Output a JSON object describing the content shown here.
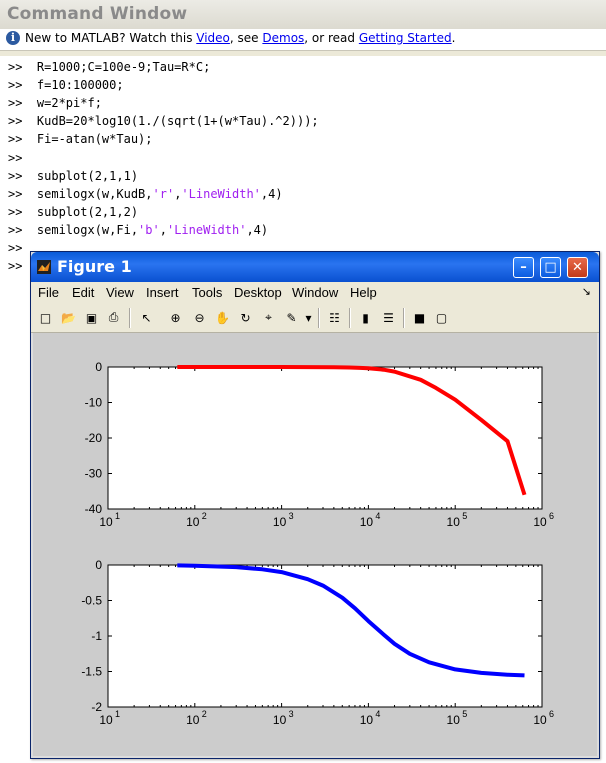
{
  "command_window": {
    "title": "Command Window",
    "info": {
      "pre": "New to MATLAB? Watch this ",
      "link_video": "Video",
      "mid1": ", see ",
      "link_demos": "Demos",
      "mid2": ", or read ",
      "link_getting_started": "Getting Started",
      "post": "."
    },
    "prompt": ">>",
    "lines": [
      [
        {
          "t": ">>  R=1000;C=100e-9;Tau=R*C;"
        }
      ],
      [
        {
          "t": ">>  f=10:100000;"
        }
      ],
      [
        {
          "t": ">>  w=2*pi*f;"
        }
      ],
      [
        {
          "t": ">>  KudB=20*log10(1./(sqrt(1+(w*Tau).^2)));"
        }
      ],
      [
        {
          "t": ">>  Fi=-atan(w*Tau);"
        }
      ],
      [
        {
          "t": ">>"
        }
      ],
      [
        {
          "t": ">>  subplot(2,1,1)"
        }
      ],
      [
        {
          "t": ">>  semilogx(w,KudB,"
        },
        {
          "t": "'r'",
          "s": true
        },
        {
          "t": ","
        },
        {
          "t": "'LineWidth'",
          "s": true
        },
        {
          "t": ",4)"
        }
      ],
      [
        {
          "t": ">>  subplot(2,1,2)"
        }
      ],
      [
        {
          "t": ">>  semilogx(w,Fi,"
        },
        {
          "t": "'b'",
          "s": true
        },
        {
          "t": ","
        },
        {
          "t": "'LineWidth'",
          "s": true
        },
        {
          "t": ",4)"
        }
      ],
      [
        {
          "t": ">>"
        }
      ],
      [
        {
          "t": ">>"
        }
      ]
    ]
  },
  "figure": {
    "title": "Figure 1",
    "menus": [
      "File",
      "Edit",
      "View",
      "Insert",
      "Tools",
      "Desktop",
      "Window",
      "Help"
    ],
    "toolbar_icons": [
      "new-figure-icon",
      "open-file-icon",
      "save-icon",
      "print-icon",
      "edit-plot-arrow-icon",
      "zoom-in-icon",
      "zoom-out-icon",
      "pan-hand-icon",
      "rotate-3d-icon",
      "data-cursor-icon",
      "brush-icon",
      "brush-dropdown-icon",
      "link-plot-icon",
      "colorbar-icon",
      "legend-icon",
      "hide-plot-tools-icon",
      "show-plot-tools-icon"
    ],
    "colors": {
      "title_bar": "#0a5bd8",
      "canvas": "#cccccc"
    }
  },
  "chart_data": [
    {
      "type": "line",
      "xscale": "log",
      "xlim": [
        10,
        1000000
      ],
      "ylim": [
        -40,
        0
      ],
      "x_ticks": [
        "10",
        "10",
        "10",
        "10",
        "10",
        "10"
      ],
      "x_tick_exponents": [
        "1",
        "2",
        "3",
        "4",
        "5",
        "6"
      ],
      "y_ticks": [
        "0",
        "-10",
        "-20",
        "-30",
        "-40"
      ],
      "y_tick_values": [
        0,
        -10,
        -20,
        -30,
        -40
      ],
      "grid": false,
      "series": [
        {
          "color": "#ff0000",
          "line_width": 4,
          "x": [
            62.83,
            100,
            200,
            500,
            1000,
            2000,
            4000,
            6000,
            8000,
            10000,
            15000,
            20000,
            40000,
            60000,
            100000,
            200000,
            400000,
            628318
          ],
          "y": [
            0,
            0,
            0,
            0,
            0,
            -0.02,
            -0.07,
            -0.15,
            -0.25,
            -0.36,
            -0.76,
            -1.3,
            -3.6,
            -5.9,
            -9.2,
            -14.9,
            -20.9,
            -36
          ]
        }
      ]
    },
    {
      "type": "line",
      "xscale": "log",
      "xlim": [
        10,
        1000000
      ],
      "ylim": [
        -2,
        0
      ],
      "x_ticks": [
        "10",
        "10",
        "10",
        "10",
        "10",
        "10"
      ],
      "x_tick_exponents": [
        "1",
        "2",
        "3",
        "4",
        "5",
        "6"
      ],
      "y_ticks": [
        "0",
        "-0.5",
        "-1",
        "-1.5",
        "-2"
      ],
      "y_tick_values": [
        0,
        -0.5,
        -1,
        -1.5,
        -2
      ],
      "grid": false,
      "series": [
        {
          "color": "#0000ff",
          "line_width": 4,
          "x": [
            62.83,
            100,
            300,
            600,
            1000,
            2000,
            3000,
            5000,
            7000,
            10000,
            15000,
            20000,
            30000,
            50000,
            100000,
            200000,
            400000,
            628318
          ],
          "y": [
            -0.006,
            -0.01,
            -0.03,
            -0.06,
            -0.1,
            -0.2,
            -0.29,
            -0.46,
            -0.61,
            -0.79,
            -0.98,
            -1.11,
            -1.25,
            -1.37,
            -1.47,
            -1.52,
            -1.545,
            -1.555
          ]
        }
      ]
    }
  ]
}
